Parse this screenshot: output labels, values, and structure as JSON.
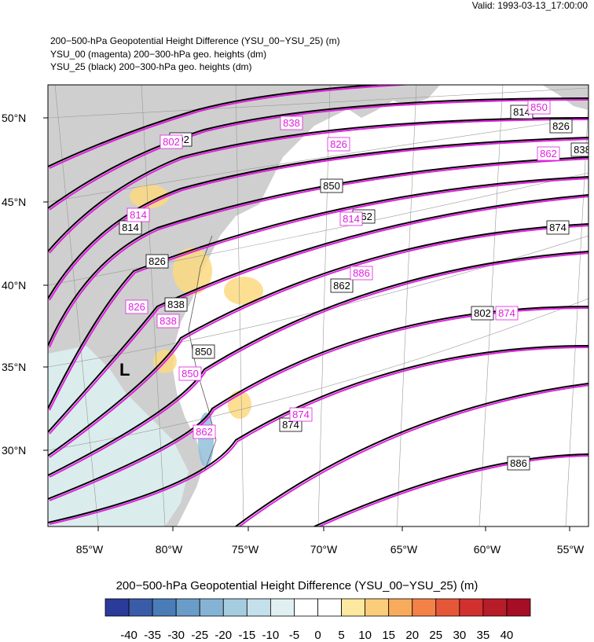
{
  "valid_time": "Valid: 1993-03-13_17:00:00",
  "titles": [
    "200−500-hPa Geopotential Height Difference (YSU_00−YSU_25)   (m)",
    "YSU_00 (magenta) 200−300-hPa geo. heights   (dm)",
    "YSU_25 (black) 200−300-hPa geo. heights   (dm)"
  ],
  "map": {
    "lat_labels": [
      "50°N",
      "45°N",
      "40°N",
      "35°N",
      "30°N"
    ],
    "lon_labels": [
      "85°W",
      "80°W",
      "75°W",
      "70°W",
      "65°W",
      "60°W",
      "55°W"
    ],
    "low_symbol": "L",
    "contour_labels_black": [
      "802",
      "814",
      "826",
      "838",
      "850",
      "862",
      "874",
      "886",
      "814",
      "826",
      "838",
      "850",
      "862",
      "874"
    ],
    "contour_labels_magenta": [
      "802",
      "814",
      "826",
      "838",
      "850",
      "862",
      "874",
      "886",
      "814",
      "826",
      "838",
      "850",
      "862",
      "874"
    ],
    "colors": {
      "magenta": "#e020e0",
      "black": "#000000",
      "land": "#cfcfcf"
    }
  },
  "colorbar": {
    "title": "200−500-hPa Geopotential Height Difference (YSU_00−YSU_25)  (m)",
    "ticks": [
      "-40",
      "-35",
      "-30",
      "-25",
      "-20",
      "-15",
      "-10",
      "-5",
      "0",
      "5",
      "10",
      "15",
      "20",
      "25",
      "30",
      "35",
      "40"
    ],
    "colors": [
      "#2b3b99",
      "#3a5ca8",
      "#4a7cb8",
      "#6a9cc8",
      "#85b3d4",
      "#a6cce0",
      "#c4e0ea",
      "#e0f0f0",
      "#ffffff",
      "#ffffff",
      "#fde8a0",
      "#fbcd7a",
      "#f8ab5c",
      "#f48148",
      "#e6573a",
      "#d2302e",
      "#b71c29",
      "#a50e26"
    ]
  }
}
